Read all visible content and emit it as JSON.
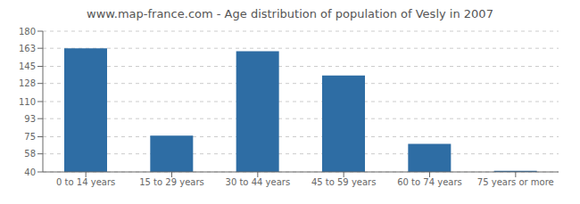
{
  "chart_data": {
    "type": "bar",
    "title": "www.map-france.com - Age distribution of population of Vesly in 2007",
    "categories": [
      "0 to 14 years",
      "15 to 29 years",
      "30 to 44 years",
      "45 to 59 years",
      "60 to 74 years",
      "75 years or more"
    ],
    "values": [
      163,
      76,
      160,
      136,
      68,
      41
    ],
    "color": "#2e6da4",
    "ylim": [
      40,
      180
    ],
    "yticks": [
      40,
      58,
      75,
      93,
      110,
      128,
      145,
      163,
      180
    ],
    "grid": true
  }
}
